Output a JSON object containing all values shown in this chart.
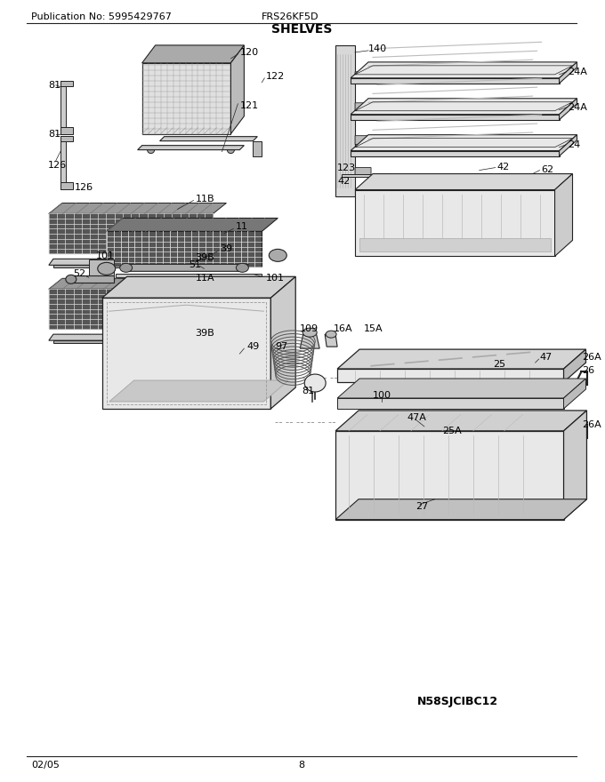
{
  "title": "SHELVES",
  "pub_no": "Publication No: 5995429767",
  "model": "FRS26KF5D",
  "date": "02/05",
  "page": "8",
  "watermark": "N58SJCIBC12",
  "bg_color": "#ffffff",
  "header_fontsize": 8,
  "title_fontsize": 10,
  "label_fontsize": 8
}
